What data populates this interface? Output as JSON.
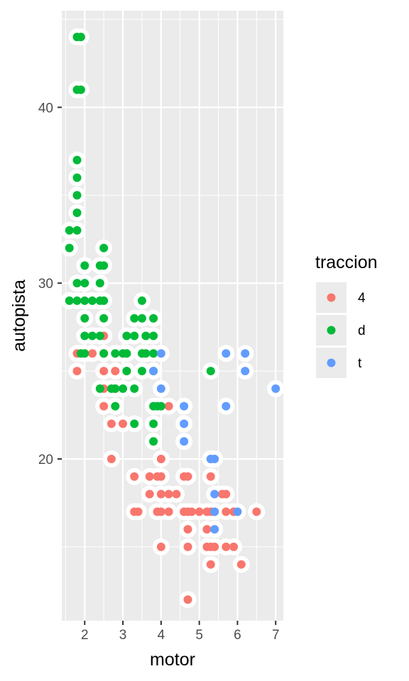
{
  "chart_data": {
    "type": "scatter",
    "xlabel": "motor",
    "ylabel": "autopista",
    "xlim": [
      1.4,
      7.2
    ],
    "ylim": [
      10.8,
      45.5
    ],
    "x_ticks": [
      2,
      3,
      4,
      5,
      6,
      7
    ],
    "y_ticks": [
      20,
      30,
      40
    ],
    "grid": true,
    "legend": {
      "title": "traccion",
      "position": "right",
      "entries": [
        "4",
        "d",
        "t"
      ]
    },
    "colors": {
      "4": "#F8766D",
      "d": "#00BA38",
      "t": "#619CFF",
      "panel": "#EBEBEB",
      "grid": "#FFFFFF",
      "halo": "#FFFFFF"
    },
    "series": [
      {
        "name": "4",
        "points": [
          [
            1.8,
            26
          ],
          [
            1.8,
            25
          ],
          [
            2.2,
            26
          ],
          [
            2.5,
            27
          ],
          [
            2.5,
            26
          ],
          [
            2.5,
            25
          ],
          [
            2.5,
            24
          ],
          [
            2.5,
            23
          ],
          [
            2.7,
            22
          ],
          [
            2.7,
            20
          ],
          [
            2.8,
            25
          ],
          [
            2.8,
            24
          ],
          [
            3.0,
            22
          ],
          [
            3.1,
            25
          ],
          [
            3.3,
            19
          ],
          [
            3.3,
            17
          ],
          [
            3.4,
            17
          ],
          [
            3.7,
            19
          ],
          [
            3.7,
            18
          ],
          [
            3.9,
            19
          ],
          [
            3.9,
            17
          ],
          [
            4.0,
            20
          ],
          [
            4.0,
            19
          ],
          [
            4.0,
            18
          ],
          [
            4.0,
            17
          ],
          [
            4.0,
            15
          ],
          [
            4.2,
            18
          ],
          [
            4.2,
            17
          ],
          [
            4.2,
            23
          ],
          [
            4.4,
            18
          ],
          [
            4.6,
            19
          ],
          [
            4.6,
            17
          ],
          [
            4.7,
            19
          ],
          [
            4.7,
            17
          ],
          [
            4.7,
            16
          ],
          [
            4.7,
            15
          ],
          [
            4.7,
            12
          ],
          [
            4.8,
            17
          ],
          [
            5.0,
            17
          ],
          [
            5.2,
            17
          ],
          [
            5.2,
            16
          ],
          [
            5.2,
            15
          ],
          [
            5.3,
            20
          ],
          [
            5.3,
            19
          ],
          [
            5.3,
            17
          ],
          [
            5.3,
            15
          ],
          [
            5.3,
            14
          ],
          [
            5.4,
            17
          ],
          [
            5.4,
            15
          ],
          [
            5.6,
            18
          ],
          [
            5.7,
            18
          ],
          [
            5.7,
            17
          ],
          [
            5.7,
            15
          ],
          [
            5.9,
            17
          ],
          [
            5.9,
            15
          ],
          [
            6.1,
            14
          ],
          [
            6.5,
            17
          ]
        ]
      },
      {
        "name": "d",
        "points": [
          [
            1.6,
            33
          ],
          [
            1.6,
            32
          ],
          [
            1.6,
            29
          ],
          [
            1.8,
            44
          ],
          [
            1.8,
            41
          ],
          [
            1.8,
            37
          ],
          [
            1.8,
            36
          ],
          [
            1.8,
            35
          ],
          [
            1.8,
            34
          ],
          [
            1.8,
            33
          ],
          [
            1.8,
            30
          ],
          [
            1.8,
            29
          ],
          [
            1.9,
            44
          ],
          [
            1.9,
            41
          ],
          [
            1.9,
            26
          ],
          [
            2.0,
            31
          ],
          [
            2.0,
            30
          ],
          [
            2.0,
            29
          ],
          [
            2.0,
            28
          ],
          [
            2.0,
            27
          ],
          [
            2.0,
            26
          ],
          [
            2.2,
            29
          ],
          [
            2.2,
            27
          ],
          [
            2.4,
            31
          ],
          [
            2.4,
            30
          ],
          [
            2.4,
            29
          ],
          [
            2.4,
            27
          ],
          [
            2.4,
            24
          ],
          [
            2.5,
            32
          ],
          [
            2.5,
            31
          ],
          [
            2.5,
            29
          ],
          [
            2.5,
            28
          ],
          [
            2.5,
            26
          ],
          [
            2.7,
            24
          ],
          [
            2.8,
            26
          ],
          [
            2.8,
            24
          ],
          [
            2.8,
            23
          ],
          [
            3.0,
            26
          ],
          [
            3.0,
            24
          ],
          [
            3.1,
            27
          ],
          [
            3.1,
            26
          ],
          [
            3.1,
            25
          ],
          [
            3.3,
            28
          ],
          [
            3.3,
            27
          ],
          [
            3.3,
            24
          ],
          [
            3.3,
            22
          ],
          [
            3.5,
            29
          ],
          [
            3.5,
            28
          ],
          [
            3.5,
            26
          ],
          [
            3.5,
            25
          ],
          [
            3.6,
            27
          ],
          [
            3.6,
            26
          ],
          [
            3.8,
            28
          ],
          [
            3.8,
            27
          ],
          [
            3.8,
            26
          ],
          [
            3.8,
            25
          ],
          [
            3.8,
            23
          ],
          [
            3.8,
            22
          ],
          [
            3.8,
            21
          ],
          [
            3.9,
            23
          ],
          [
            4.0,
            23
          ],
          [
            5.3,
            25
          ]
        ]
      },
      {
        "name": "t",
        "points": [
          [
            3.8,
            25
          ],
          [
            4.0,
            26
          ],
          [
            4.0,
            24
          ],
          [
            4.6,
            23
          ],
          [
            4.6,
            22
          ],
          [
            4.6,
            21
          ],
          [
            5.3,
            20
          ],
          [
            5.4,
            20
          ],
          [
            5.4,
            18
          ],
          [
            5.4,
            17
          ],
          [
            5.4,
            16
          ],
          [
            5.7,
            26
          ],
          [
            5.7,
            23
          ],
          [
            6.0,
            17
          ],
          [
            6.2,
            26
          ],
          [
            6.2,
            25
          ],
          [
            7.0,
            24
          ]
        ]
      }
    ]
  }
}
